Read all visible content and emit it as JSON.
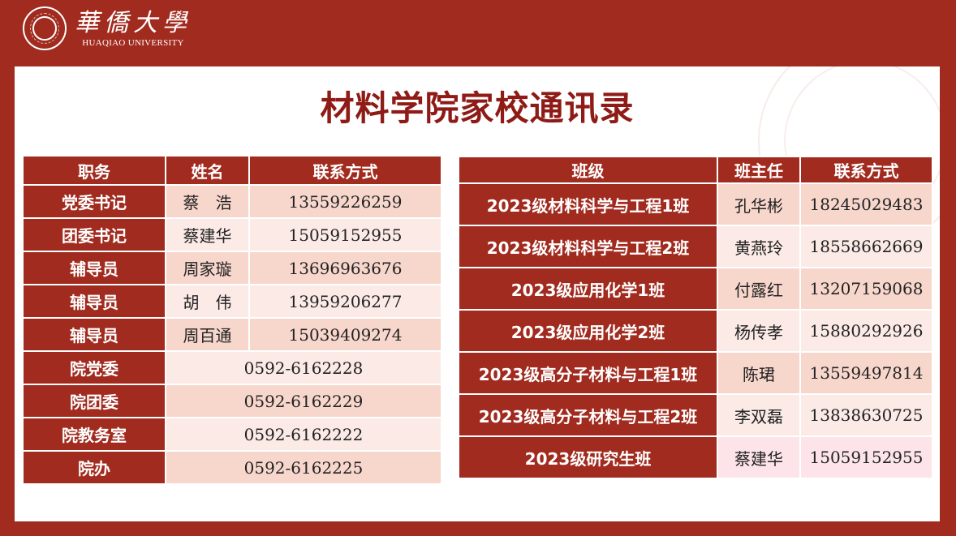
{
  "logo": {
    "cn": "華僑大學",
    "en": "HUAQIAO UNIVERSITY"
  },
  "title": "材料学院家校通讯录",
  "left_table": {
    "headers": [
      "职务",
      "姓名",
      "联系方式"
    ],
    "rows": [
      {
        "role": "党委书记",
        "name": "蔡　浩",
        "phone": "13559226259"
      },
      {
        "role": "团委书记",
        "name": "蔡建华",
        "phone": "15059152955"
      },
      {
        "role": "辅导员",
        "name": "周家璇",
        "phone": "13696963676"
      },
      {
        "role": "辅导员",
        "name": "胡　伟",
        "phone": "13959206277"
      },
      {
        "role": "辅导员",
        "name": "周百通",
        "phone": "15039409274"
      },
      {
        "role": "院党委",
        "phone": "0592-6162228"
      },
      {
        "role": "院团委",
        "phone": "0592-6162229"
      },
      {
        "role": "院教务室",
        "phone": "0592-6162222"
      },
      {
        "role": "院办",
        "phone": "0592-6162225"
      }
    ]
  },
  "right_table": {
    "headers": [
      "班级",
      "班主任",
      "联系方式"
    ],
    "rows": [
      {
        "cls": "2023级材料科学与工程1班",
        "teacher": "孔华彬",
        "phone": "18245029483"
      },
      {
        "cls": "2023级材料科学与工程2班",
        "teacher": "黄燕玲",
        "phone": "18558662669"
      },
      {
        "cls": "2023级应用化学1班",
        "teacher": "付露红",
        "phone": "13207159068"
      },
      {
        "cls": "2023级应用化学2班",
        "teacher": "杨传孝",
        "phone": "15880292926"
      },
      {
        "cls": "2023级高分子材料与工程1班",
        "teacher": "陈珺",
        "phone": "13559497814"
      },
      {
        "cls": "2023级高分子材料与工程2班",
        "teacher": "李双磊",
        "phone": "13838630725"
      },
      {
        "cls": "2023级研究生班",
        "teacher": "蔡建华",
        "phone": "15059152955"
      }
    ]
  },
  "colors": {
    "brand": "#A12B1F",
    "title": "#8E1B16",
    "row_a": "#F7D6CC",
    "row_b": "#FBEAE6"
  }
}
